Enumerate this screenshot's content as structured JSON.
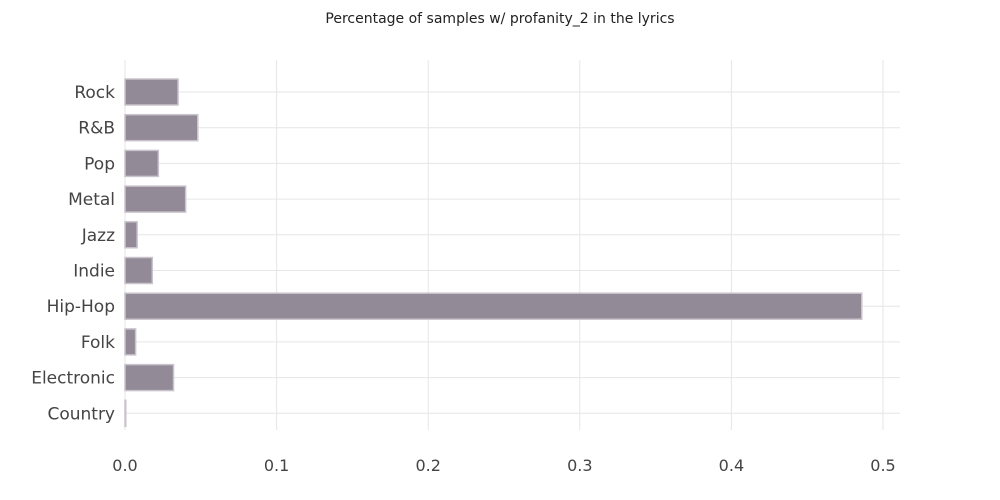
{
  "chart_data": {
    "type": "bar",
    "orientation": "horizontal",
    "title": "Percentage of samples w/ profanity_2 in the lyrics",
    "xlabel": "",
    "ylabel": "",
    "categories": [
      "Rock",
      "R&B",
      "Pop",
      "Metal",
      "Jazz",
      "Indie",
      "Hip-Hop",
      "Folk",
      "Electronic",
      "Country"
    ],
    "values": [
      0.035,
      0.048,
      0.022,
      0.04,
      0.008,
      0.018,
      0.486,
      0.007,
      0.032,
      0.0
    ],
    "xlim": [
      0,
      0.51
    ],
    "xticks": [
      "0.0",
      "0.1",
      "0.2",
      "0.3",
      "0.4",
      "0.5"
    ],
    "grid": true,
    "bar_color": "#938a98"
  }
}
